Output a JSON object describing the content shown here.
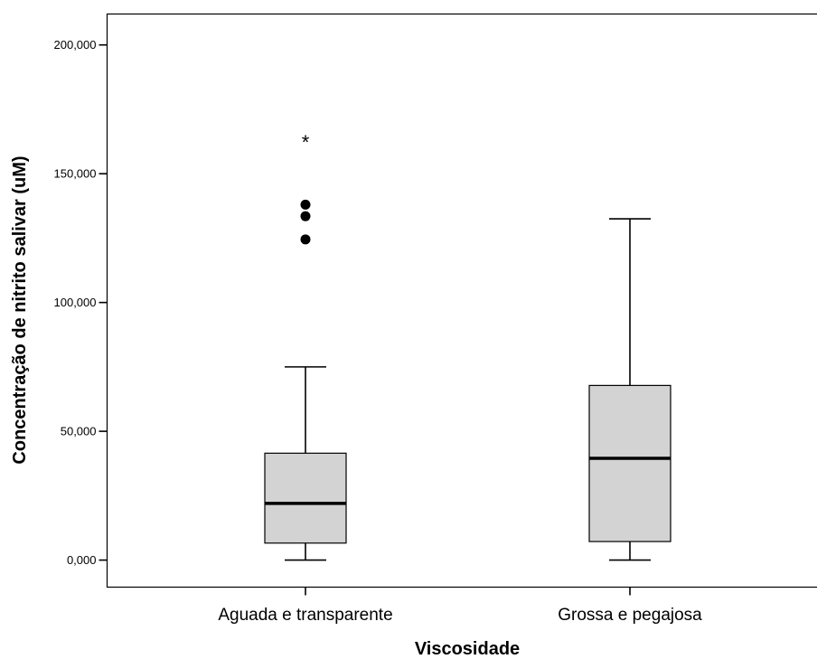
{
  "chart_data": {
    "type": "boxplot",
    "xlabel": "Viscosidade",
    "ylabel": "Concentração de nitrito salivar (uM)",
    "ylim": [
      -10.5,
      212
    ],
    "yticks": [
      0,
      50,
      100,
      150,
      200
    ],
    "ytick_labels": [
      "0,000",
      "50,000",
      "100,000",
      "150,000",
      "200,000"
    ],
    "categories": [
      "Aguada e transparente",
      "Grossa e pegajosa"
    ],
    "boxes": [
      {
        "category": "Aguada e transparente",
        "whisker_low": 0,
        "q1": 6.6,
        "median": 22.0,
        "q3": 41.5,
        "whisker_high": 75.0,
        "outliers": [
          124.5,
          133.5,
          138.0
        ],
        "extremes": [
          163.0
        ]
      },
      {
        "category": "Grossa e pegajosa",
        "whisker_low": 0,
        "q1": 7.2,
        "median": 39.5,
        "q3": 67.8,
        "whisker_high": 132.5,
        "outliers": [],
        "extremes": []
      }
    ],
    "box_fill": "#d3d3d3",
    "grid": false
  }
}
